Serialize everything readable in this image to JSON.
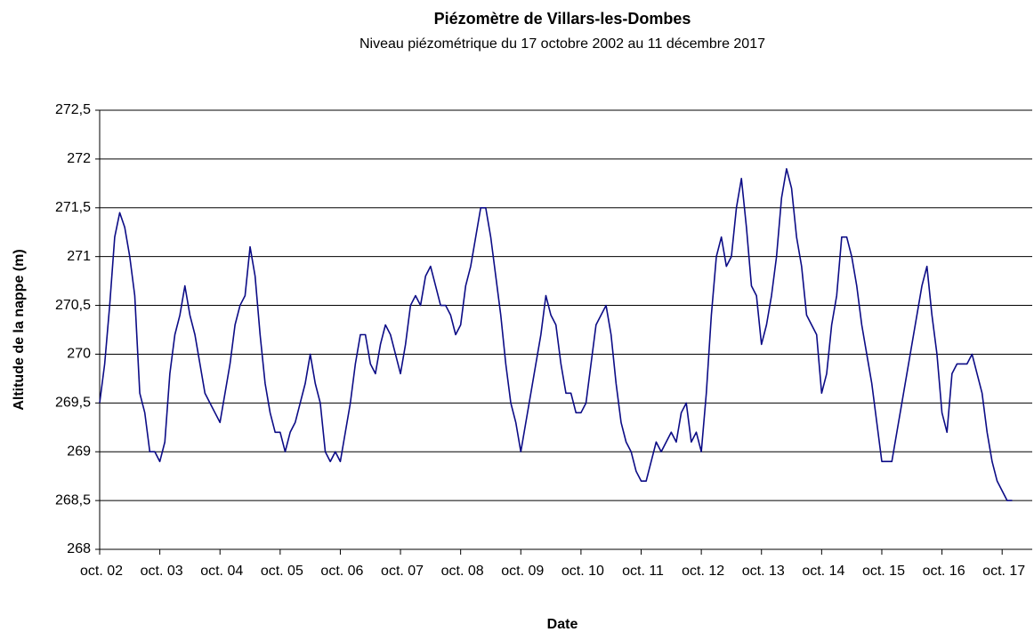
{
  "chart_data": {
    "type": "line",
    "title": "Piézomètre de Villars-les-Dombes",
    "subtitle": "Niveau piézométrique du 17 octobre 2002 au 11 décembre 2017",
    "x_label": "Date",
    "y_label": "Altitude de la nappe (m)",
    "color": "#0c0c86",
    "grid": true,
    "xlim": [
      "2002-10",
      "2018-04"
    ],
    "xticks": [
      {
        "value": "2002-10",
        "label": "oct. 02"
      },
      {
        "value": "2003-10",
        "label": "oct. 03"
      },
      {
        "value": "2004-10",
        "label": "oct. 04"
      },
      {
        "value": "2005-10",
        "label": "oct. 05"
      },
      {
        "value": "2006-10",
        "label": "oct. 06"
      },
      {
        "value": "2007-10",
        "label": "oct. 07"
      },
      {
        "value": "2008-10",
        "label": "oct. 08"
      },
      {
        "value": "2009-10",
        "label": "oct. 09"
      },
      {
        "value": "2010-10",
        "label": "oct. 10"
      },
      {
        "value": "2011-10",
        "label": "oct. 11"
      },
      {
        "value": "2012-10",
        "label": "oct. 12"
      },
      {
        "value": "2013-10",
        "label": "oct. 13"
      },
      {
        "value": "2014-10",
        "label": "oct. 14"
      },
      {
        "value": "2015-10",
        "label": "oct. 15"
      },
      {
        "value": "2016-10",
        "label": "oct. 16"
      },
      {
        "value": "2017-10",
        "label": "oct. 17"
      }
    ],
    "ylim": [
      268,
      272.5
    ],
    "yticks": [
      268,
      {
        "value": 268.5,
        "label": "268,5"
      },
      269,
      {
        "value": 269.5,
        "label": "269,5"
      },
      270,
      {
        "value": 270.5,
        "label": "270,5"
      },
      271,
      {
        "value": 271.5,
        "label": "271,5"
      },
      272,
      {
        "value": 272.5,
        "label": "272,5"
      }
    ],
    "x": [
      "2002-10",
      "2002-11",
      "2002-12",
      "2003-01",
      "2003-02",
      "2003-03",
      "2003-04",
      "2003-05",
      "2003-06",
      "2003-07",
      "2003-08",
      "2003-09",
      "2003-10",
      "2003-11",
      "2003-12",
      "2004-01",
      "2004-02",
      "2004-03",
      "2004-04",
      "2004-05",
      "2004-06",
      "2004-07",
      "2004-08",
      "2004-09",
      "2004-10",
      "2004-11",
      "2004-12",
      "2005-01",
      "2005-02",
      "2005-03",
      "2005-04",
      "2005-05",
      "2005-06",
      "2005-07",
      "2005-08",
      "2005-09",
      "2005-10",
      "2005-11",
      "2005-12",
      "2006-01",
      "2006-02",
      "2006-03",
      "2006-04",
      "2006-05",
      "2006-06",
      "2006-07",
      "2006-08",
      "2006-09",
      "2006-10",
      "2006-11",
      "2006-12",
      "2007-01",
      "2007-02",
      "2007-03",
      "2007-04",
      "2007-05",
      "2007-06",
      "2007-07",
      "2007-08",
      "2007-09",
      "2007-10",
      "2007-11",
      "2007-12",
      "2008-01",
      "2008-02",
      "2008-03",
      "2008-04",
      "2008-05",
      "2008-06",
      "2008-07",
      "2008-08",
      "2008-09",
      "2008-10",
      "2008-11",
      "2008-12",
      "2009-01",
      "2009-02",
      "2009-03",
      "2009-04",
      "2009-05",
      "2009-06",
      "2009-07",
      "2009-08",
      "2009-09",
      "2009-10",
      "2009-11",
      "2009-12",
      "2010-01",
      "2010-02",
      "2010-03",
      "2010-04",
      "2010-05",
      "2010-06",
      "2010-07",
      "2010-08",
      "2010-09",
      "2010-10",
      "2010-11",
      "2010-12",
      "2011-01",
      "2011-02",
      "2011-03",
      "2011-04",
      "2011-05",
      "2011-06",
      "2011-07",
      "2011-08",
      "2011-09",
      "2011-10",
      "2011-11",
      "2011-12",
      "2012-01",
      "2012-02",
      "2012-03",
      "2012-04",
      "2012-05",
      "2012-06",
      "2012-07",
      "2012-08",
      "2012-09",
      "2012-10",
      "2012-11",
      "2012-12",
      "2013-01",
      "2013-02",
      "2013-03",
      "2013-04",
      "2013-05",
      "2013-06",
      "2013-07",
      "2013-08",
      "2013-09",
      "2013-10",
      "2013-11",
      "2013-12",
      "2014-01",
      "2014-02",
      "2014-03",
      "2014-04",
      "2014-05",
      "2014-06",
      "2014-07",
      "2014-08",
      "2014-09",
      "2014-10",
      "2014-11",
      "2014-12",
      "2015-01",
      "2015-02",
      "2015-03",
      "2015-04",
      "2015-05",
      "2015-06",
      "2015-07",
      "2015-08",
      "2015-09",
      "2015-10",
      "2015-11",
      "2015-12",
      "2016-01",
      "2016-02",
      "2016-03",
      "2016-04",
      "2016-05",
      "2016-06",
      "2016-07",
      "2016-08",
      "2016-09",
      "2016-10",
      "2016-11",
      "2016-12",
      "2017-01",
      "2017-02",
      "2017-03",
      "2017-04",
      "2017-05",
      "2017-06",
      "2017-07",
      "2017-08",
      "2017-09",
      "2017-10",
      "2017-11",
      "2017-12"
    ],
    "values": [
      269.5,
      269.9,
      270.5,
      271.2,
      271.45,
      271.3,
      271.0,
      270.6,
      269.6,
      269.4,
      269.0,
      269.0,
      268.9,
      269.1,
      269.8,
      270.2,
      270.4,
      270.7,
      270.4,
      270.2,
      269.9,
      269.6,
      269.5,
      269.4,
      269.3,
      269.6,
      269.9,
      270.3,
      270.5,
      270.6,
      271.1,
      270.8,
      270.2,
      269.7,
      269.4,
      269.2,
      269.2,
      269.0,
      269.2,
      269.3,
      269.5,
      269.7,
      270.0,
      269.7,
      269.5,
      269.0,
      268.9,
      269.0,
      268.9,
      269.2,
      269.5,
      269.9,
      270.2,
      270.2,
      269.9,
      269.8,
      270.1,
      270.3,
      270.2,
      270.0,
      269.8,
      270.1,
      270.5,
      270.6,
      270.5,
      270.8,
      270.9,
      270.7,
      270.5,
      270.5,
      270.4,
      270.2,
      270.3,
      270.7,
      270.9,
      271.2,
      271.5,
      271.5,
      271.2,
      270.8,
      270.4,
      269.9,
      269.5,
      269.3,
      269.0,
      269.3,
      269.6,
      269.9,
      270.2,
      270.6,
      270.4,
      270.3,
      269.9,
      269.6,
      269.6,
      269.4,
      269.4,
      269.5,
      269.9,
      270.3,
      270.4,
      270.5,
      270.2,
      269.7,
      269.3,
      269.1,
      269.0,
      268.8,
      268.7,
      268.7,
      268.9,
      269.1,
      269.0,
      269.1,
      269.2,
      269.1,
      269.4,
      269.5,
      269.1,
      269.2,
      269.0,
      269.6,
      270.4,
      271.0,
      271.2,
      270.9,
      271.0,
      271.5,
      271.8,
      271.3,
      270.7,
      270.6,
      270.1,
      270.3,
      270.6,
      271.0,
      271.6,
      271.9,
      271.7,
      271.2,
      270.9,
      270.4,
      270.3,
      270.2,
      269.6,
      269.8,
      270.3,
      270.6,
      271.2,
      271.2,
      271.0,
      270.7,
      270.3,
      270.0,
      269.7,
      269.3,
      268.9,
      268.9,
      268.9,
      269.2,
      269.5,
      269.8,
      270.1,
      270.4,
      270.7,
      270.9,
      270.4,
      270.0,
      269.4,
      269.2,
      269.8,
      269.9,
      269.9,
      269.9,
      270.0,
      269.8,
      269.6,
      269.2,
      268.9,
      268.7,
      268.6,
      268.5,
      268.5
    ]
  }
}
